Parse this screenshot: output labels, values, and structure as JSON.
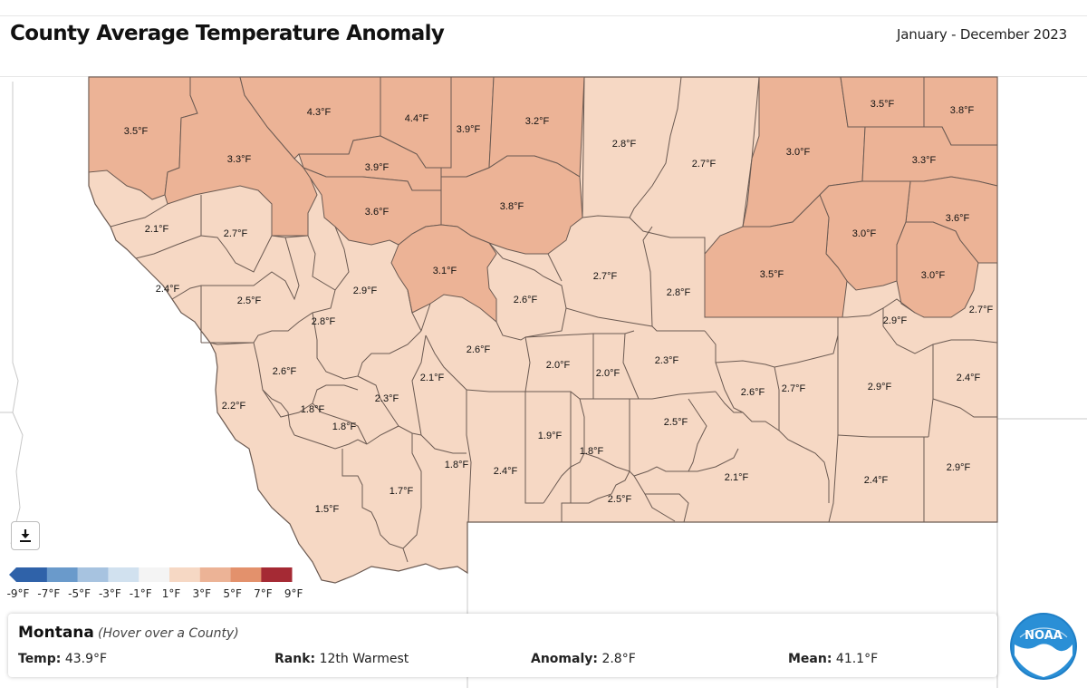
{
  "header": {
    "title": "County Average Temperature Anomaly",
    "date_range": "January - December 2023"
  },
  "legend": {
    "labels": [
      "-9°F",
      "-7°F",
      "-5°F",
      "-3°F",
      "-1°F",
      "1°F",
      "3°F",
      "5°F",
      "7°F",
      "9°F"
    ],
    "colors": [
      "#2f62a9",
      "#6a9acb",
      "#a7c3e0",
      "#d1e1ef",
      "#f4f4f4",
      "#f6d8c4",
      "#ecb396",
      "#e3916c",
      "#a52a34"
    ]
  },
  "info": {
    "state": "Montana",
    "hint": "(Hover over a County)",
    "temp_label": "Temp:",
    "temp_value": "43.9°F",
    "rank_label": "Rank:",
    "rank_value": "12th Warmest",
    "anomaly_label": "Anomaly:",
    "anomaly_value": "2.8°F",
    "mean_label": "Mean:",
    "mean_value": "41.1°F"
  },
  "logo_text": "NOAA",
  "download_icon": "download-icon",
  "colors": {
    "light": "#f6d8c4",
    "medium": "#ecb396",
    "border": "#6b5a52"
  },
  "counties": [
    {
      "label": "3.5°F",
      "value": 3.5
    },
    {
      "label": "3.3°F",
      "value": 3.3
    },
    {
      "label": "4.3°F",
      "value": 4.3
    },
    {
      "label": "4.4°F",
      "value": 4.4
    },
    {
      "label": "3.9°F",
      "value": 3.9
    },
    {
      "label": "3.2°F",
      "value": 3.2
    },
    {
      "label": "2.8°F",
      "value": 2.8
    },
    {
      "label": "2.7°F",
      "value": 2.7
    },
    {
      "label": "3.0°F",
      "value": 3.0
    },
    {
      "label": "3.5°F",
      "value": 3.5
    },
    {
      "label": "3.8°F",
      "value": 3.8
    },
    {
      "label": "3.3°F",
      "value": 3.3
    },
    {
      "label": "3.9°F",
      "value": 3.9
    },
    {
      "label": "3.6°F",
      "value": 3.6
    },
    {
      "label": "3.8°F",
      "value": 3.8
    },
    {
      "label": "2.1°F",
      "value": 2.1
    },
    {
      "label": "2.7°F",
      "value": 2.7
    },
    {
      "label": "3.0°F",
      "value": 3.0
    },
    {
      "label": "3.6°F",
      "value": 3.6
    },
    {
      "label": "3.1°F",
      "value": 3.1
    },
    {
      "label": "2.7°F",
      "value": 2.7
    },
    {
      "label": "3.5°F",
      "value": 3.5
    },
    {
      "label": "3.0°F",
      "value": 3.0
    },
    {
      "label": "2.4°F",
      "value": 2.4
    },
    {
      "label": "2.5°F",
      "value": 2.5
    },
    {
      "label": "2.9°F",
      "value": 2.9
    },
    {
      "label": "2.6°F",
      "value": 2.6
    },
    {
      "label": "2.8°F",
      "value": 2.8
    },
    {
      "label": "2.7°F",
      "value": 2.7
    },
    {
      "label": "2.8°F",
      "value": 2.8
    },
    {
      "label": "2.9°F",
      "value": 2.9
    },
    {
      "label": "2.6°F",
      "value": 2.6
    },
    {
      "label": "2.6°F",
      "value": 2.6
    },
    {
      "label": "2.0°F",
      "value": 2.0
    },
    {
      "label": "2.0°F",
      "value": 2.0
    },
    {
      "label": "2.3°F",
      "value": 2.3
    },
    {
      "label": "2.1°F",
      "value": 2.1
    },
    {
      "label": "2.3°F",
      "value": 2.3
    },
    {
      "label": "2.2°F",
      "value": 2.2
    },
    {
      "label": "1.8°F",
      "value": 1.8
    },
    {
      "label": "1.8°F",
      "value": 1.8
    },
    {
      "label": "2.6°F",
      "value": 2.6
    },
    {
      "label": "2.7°F",
      "value": 2.7
    },
    {
      "label": "2.9°F",
      "value": 2.9
    },
    {
      "label": "2.4°F",
      "value": 2.4
    },
    {
      "label": "2.5°F",
      "value": 2.5
    },
    {
      "label": "1.9°F",
      "value": 1.9
    },
    {
      "label": "1.8°F",
      "value": 1.8
    },
    {
      "label": "1.8°F",
      "value": 1.8
    },
    {
      "label": "2.4°F",
      "value": 2.4
    },
    {
      "label": "1.7°F",
      "value": 1.7
    },
    {
      "label": "1.5°F",
      "value": 1.5
    },
    {
      "label": "2.5°F",
      "value": 2.5
    },
    {
      "label": "2.1°F",
      "value": 2.1
    },
    {
      "label": "2.4°F",
      "value": 2.4
    },
    {
      "label": "2.9°F",
      "value": 2.9
    }
  ]
}
